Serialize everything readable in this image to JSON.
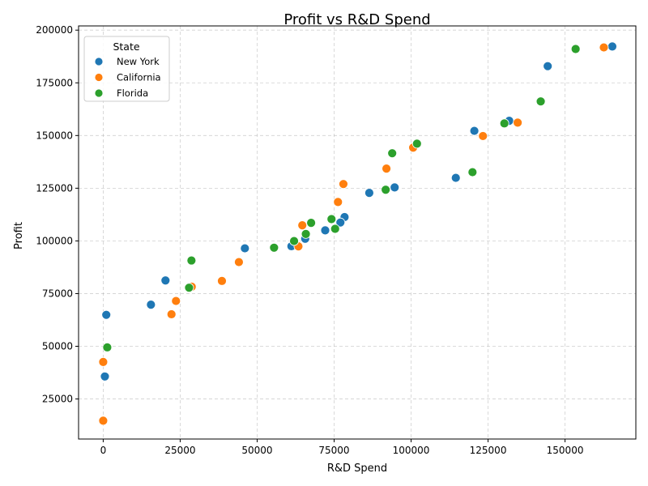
{
  "chart_data": {
    "type": "scatter",
    "title": "Profit vs R&D Spend",
    "xlabel": "R&D Spend",
    "ylabel": "Profit",
    "xlim": [
      -8000,
      173000
    ],
    "ylim": [
      6000,
      202000
    ],
    "xticks": [
      0,
      25000,
      50000,
      75000,
      100000,
      125000,
      150000
    ],
    "yticks": [
      25000,
      50000,
      75000,
      100000,
      125000,
      150000,
      175000,
      200000
    ],
    "xtick_labels": [
      "0",
      "25000",
      "50000",
      "75000",
      "100000",
      "125000",
      "150000"
    ],
    "ytick_labels": [
      "25000",
      "50000",
      "75000",
      "100000",
      "125000",
      "150000",
      "175000",
      "200000"
    ],
    "grid": true,
    "legend": {
      "title": "State",
      "placement": "top-left"
    },
    "series": [
      {
        "name": "New York",
        "color": "#1f77b4",
        "points": [
          [
            165349,
            192261
          ],
          [
            144372,
            182902
          ],
          [
            131877,
            156991
          ],
          [
            120543,
            152212
          ],
          [
            114524,
            129917
          ],
          [
            94657,
            125371
          ],
          [
            86420,
            122777
          ],
          [
            78389,
            111313
          ],
          [
            77044,
            108734
          ],
          [
            72108,
            105008
          ],
          [
            65605,
            101004
          ],
          [
            61136,
            97483
          ],
          [
            46014,
            96479
          ],
          [
            20230,
            81229
          ],
          [
            15506,
            69759
          ],
          [
            1001,
            64927
          ],
          [
            542,
            35673
          ]
        ]
      },
      {
        "name": "California",
        "color": "#ff7f0e",
        "points": [
          [
            162598,
            191792
          ],
          [
            134615,
            156123
          ],
          [
            123335,
            149760
          ],
          [
            100672,
            144259
          ],
          [
            91992,
            134307
          ],
          [
            78013,
            126993
          ],
          [
            76254,
            118474
          ],
          [
            64665,
            107404
          ],
          [
            63408,
            97428
          ],
          [
            44070,
            89949
          ],
          [
            38558,
            81005
          ],
          [
            28754,
            78240
          ],
          [
            23641,
            71498
          ],
          [
            22178,
            65201
          ],
          [
            0,
            42560
          ],
          [
            0,
            14681
          ]
        ]
      },
      {
        "name": "Florida",
        "color": "#2ca02c",
        "points": [
          [
            153442,
            191050
          ],
          [
            142107,
            166188
          ],
          [
            130298,
            155753
          ],
          [
            101913,
            146122
          ],
          [
            93864,
            141586
          ],
          [
            119944,
            132602
          ],
          [
            91749,
            124267
          ],
          [
            67533,
            108552
          ],
          [
            74149,
            110352
          ],
          [
            65816,
            103282
          ],
          [
            75329,
            105734
          ],
          [
            61994,
            99938
          ],
          [
            55494,
            96779
          ],
          [
            28663,
            90708
          ],
          [
            27893,
            77798
          ],
          [
            1316,
            49491
          ]
        ]
      }
    ]
  }
}
